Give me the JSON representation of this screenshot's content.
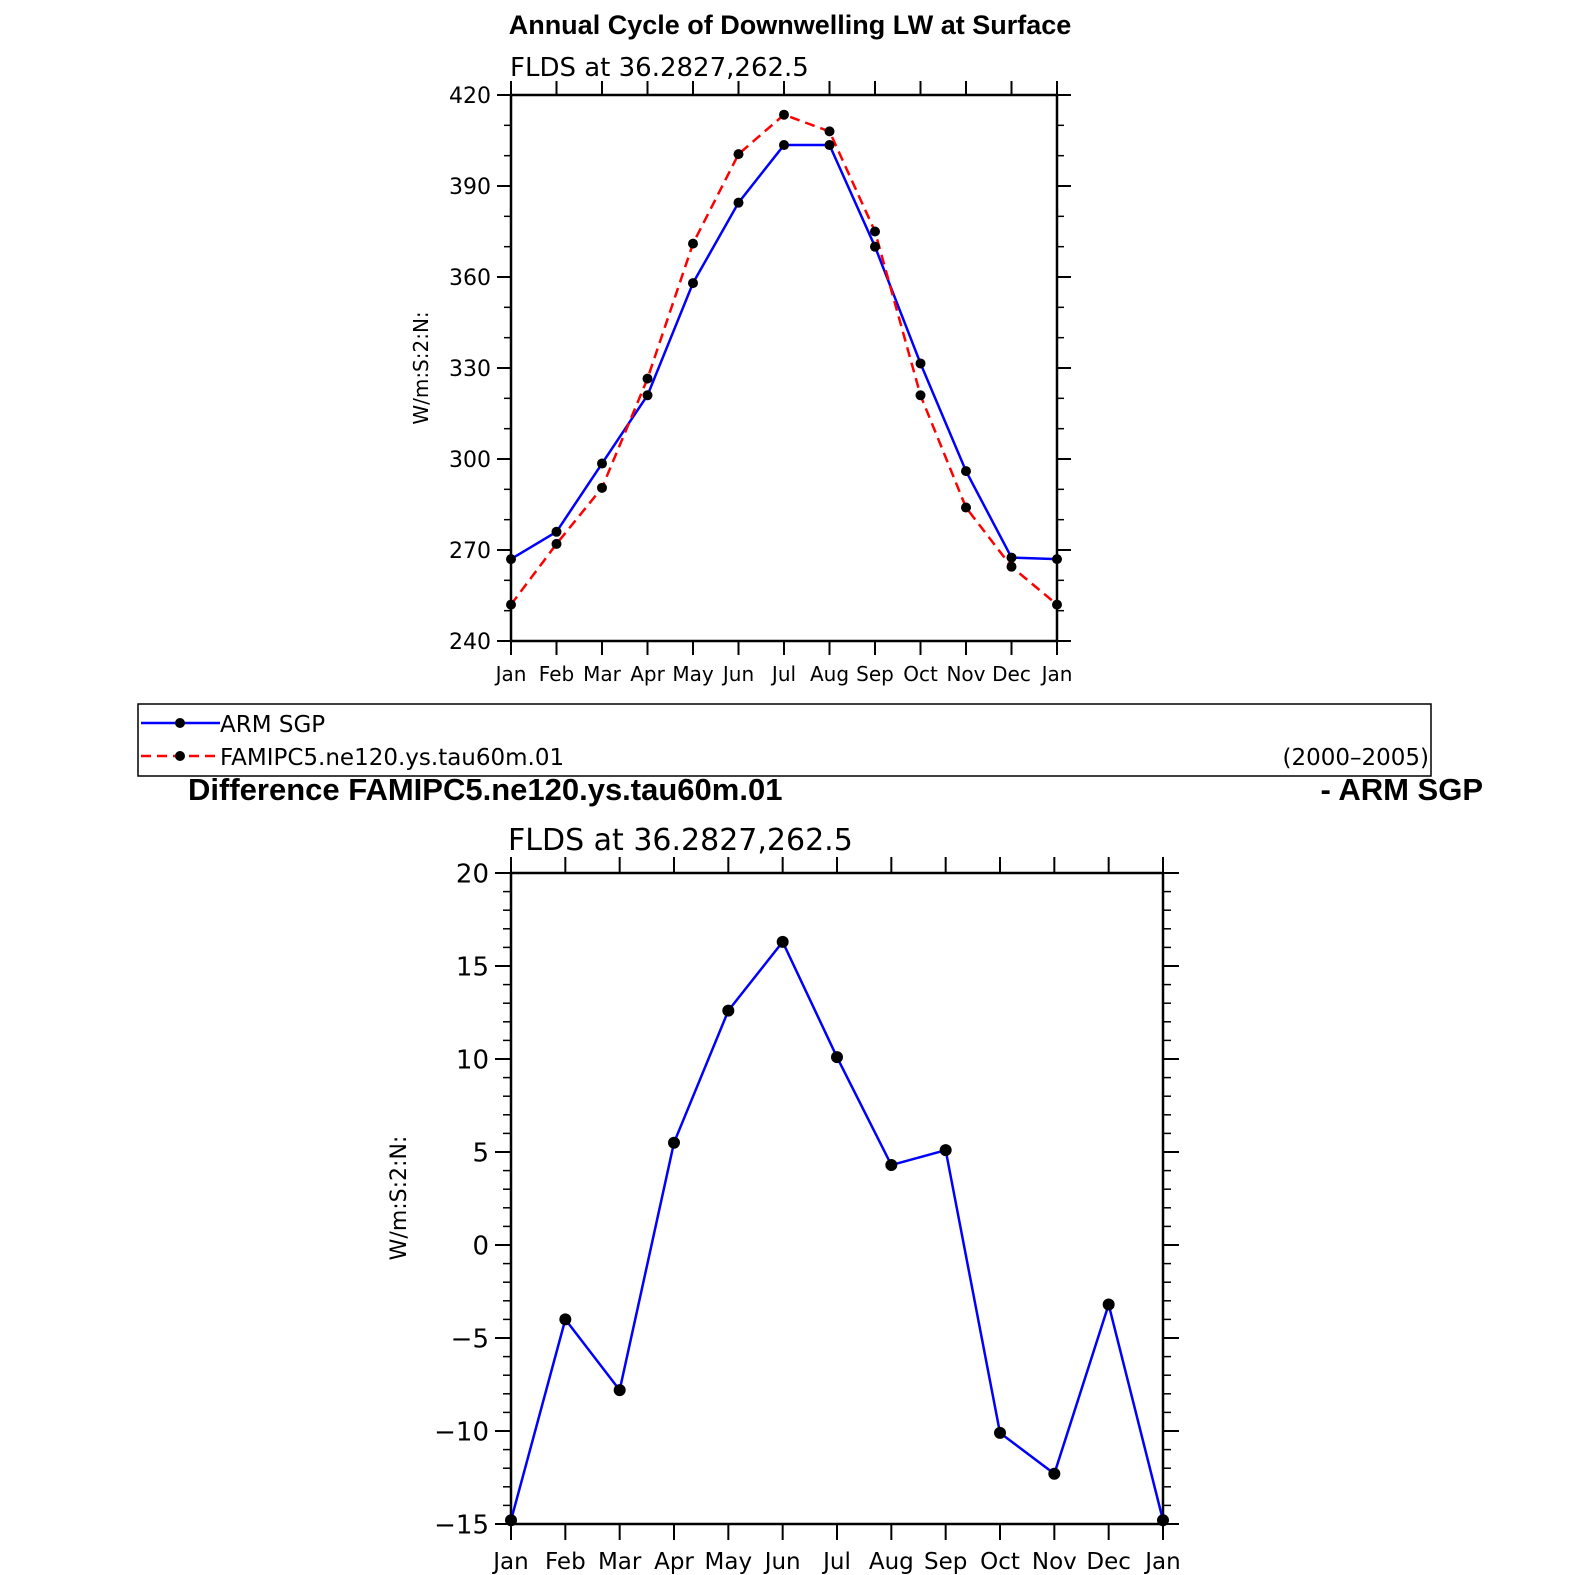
{
  "chart_data": [
    {
      "type": "line",
      "title": "Annual Cycle of Downwelling LW at Surface",
      "subtitle": "FLDS at 36.2827,262.5",
      "xlabel": "",
      "ylabel": "W/m:S:2:N:",
      "categories": [
        "Jan",
        "Feb",
        "Mar",
        "Apr",
        "May",
        "Jun",
        "Jul",
        "Aug",
        "Sep",
        "Oct",
        "Nov",
        "Dec",
        "Jan"
      ],
      "ylim": [
        240,
        420
      ],
      "yticks": [
        240,
        270,
        300,
        330,
        360,
        390,
        420
      ],
      "series": [
        {
          "name": "ARM SGP",
          "color": "#0000ff",
          "dash": "solid",
          "values": [
            267,
            276,
            298.5,
            321,
            358,
            384.5,
            403.5,
            403.5,
            370,
            331.5,
            296,
            267.5,
            267
          ]
        },
        {
          "name": "FAMIPC5.ne120.ys.tau60m.01",
          "color": "#ff0000",
          "dash": "dashed",
          "values": [
            252,
            272,
            290.5,
            326.5,
            371,
            400.5,
            413.5,
            408,
            375,
            321,
            284,
            264.5,
            252
          ]
        }
      ]
    },
    {
      "type": "line",
      "title": "Difference FAMIPC5.ne120.ys.tau60m.01",
      "title_right": "- ARM SGP",
      "subtitle": "FLDS at 36.2827,262.5",
      "xlabel": "",
      "ylabel": "W/m:S:2:N:",
      "categories": [
        "Jan",
        "Feb",
        "Mar",
        "Apr",
        "May",
        "Jun",
        "Jul",
        "Aug",
        "Sep",
        "Oct",
        "Nov",
        "Dec",
        "Jan"
      ],
      "ylim": [
        -15,
        20
      ],
      "yticks": [
        -15,
        -10,
        -5,
        0,
        5,
        10,
        15,
        20
      ],
      "series": [
        {
          "color": "#0000ff",
          "dash": "solid",
          "values": [
            -14.8,
            -4.0,
            -7.8,
            5.5,
            12.6,
            16.3,
            10.1,
            4.3,
            5.1,
            -10.1,
            -12.3,
            -3.2,
            -14.8
          ]
        }
      ]
    }
  ],
  "legend": {
    "entries": [
      "ARM SGP",
      "FAMIPC5.ne120.ys.tau60m.01"
    ],
    "period": "(2000–2005)"
  }
}
